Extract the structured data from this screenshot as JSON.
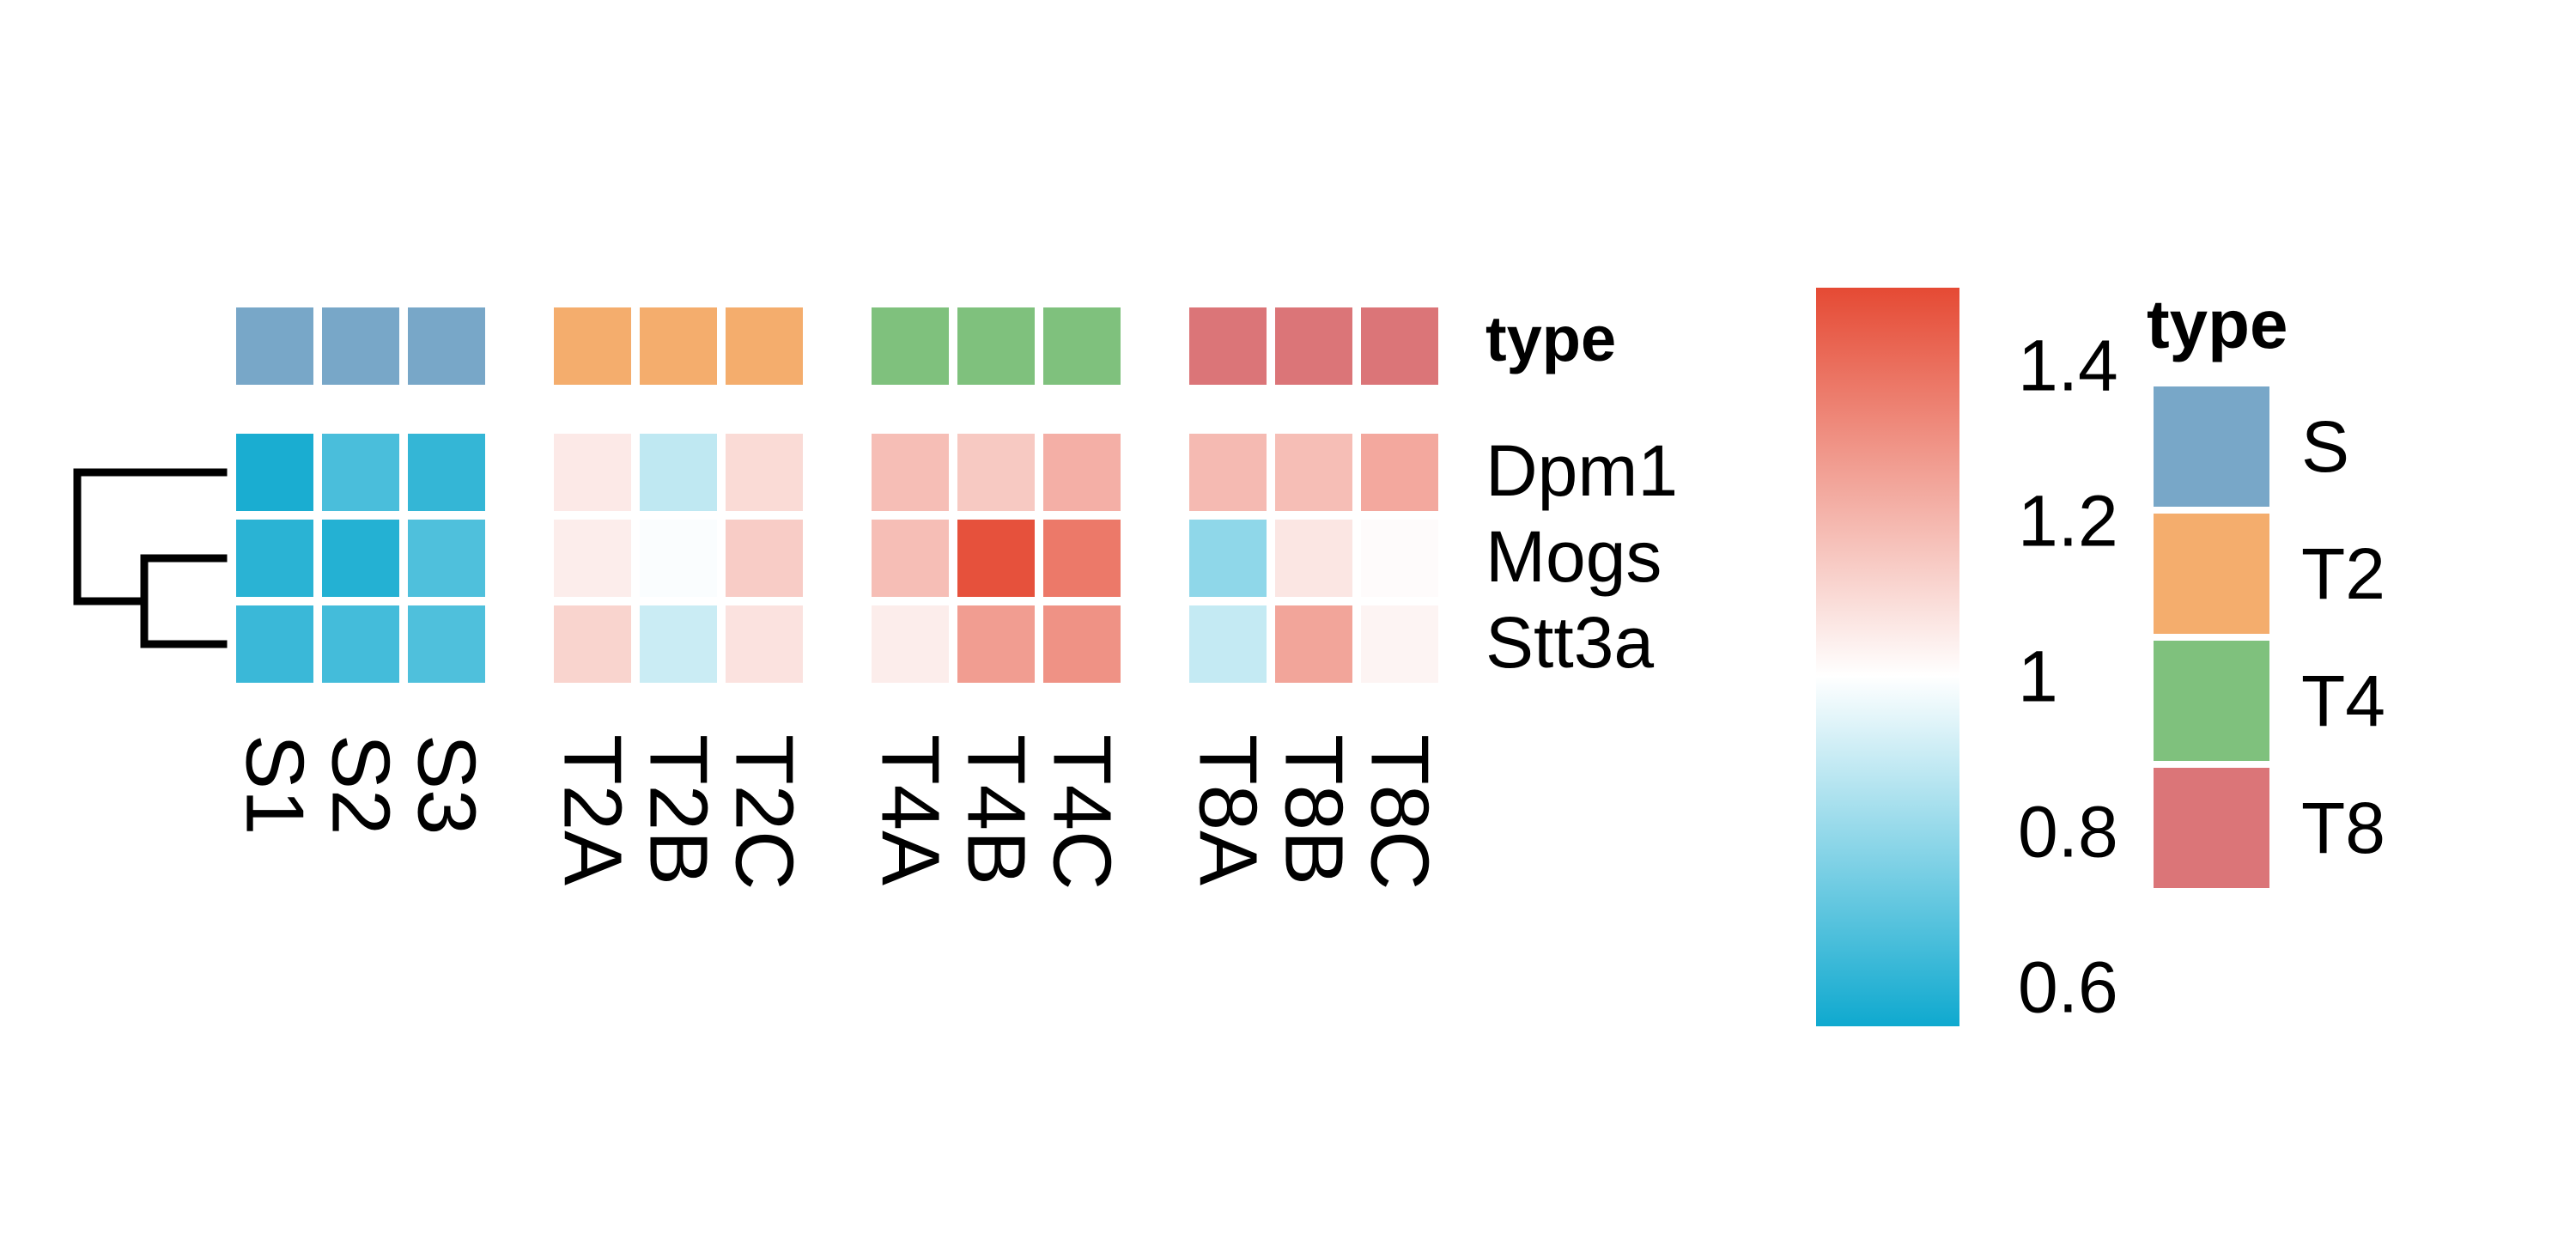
{
  "chart_data": {
    "type": "heatmap",
    "rows": [
      "Dpm1",
      "Mogs",
      "Stt3a"
    ],
    "columns": [
      "S1",
      "S2",
      "S3",
      "T2A",
      "T2B",
      "T2C",
      "T4A",
      "T4B",
      "T4C",
      "T8A",
      "T8B",
      "T8C"
    ],
    "column_groups": [
      "S",
      "T2",
      "T4",
      "T8"
    ],
    "column_type": [
      "S",
      "S",
      "S",
      "T2",
      "T2",
      "T2",
      "T4",
      "T4",
      "T4",
      "T8",
      "T8",
      "T8"
    ],
    "values": [
      [
        0.57,
        0.66,
        0.62,
        1.06,
        0.88,
        1.1,
        1.18,
        1.15,
        1.22,
        1.19,
        1.18,
        1.24
      ],
      [
        0.6,
        0.59,
        0.67,
        1.05,
        0.99,
        1.14,
        1.18,
        1.48,
        1.37,
        0.79,
        1.07,
        1.01
      ],
      [
        0.63,
        0.65,
        0.67,
        1.12,
        0.9,
        1.08,
        1.05,
        1.27,
        1.3,
        0.89,
        1.25,
        1.03
      ]
    ],
    "color_scale": {
      "min": 0.55,
      "mid": 1,
      "max": 1.5,
      "low_color": "#0fa9cf",
      "mid_color": "#ffffff",
      "high_color": "#e54a34",
      "ticks": [
        1.4,
        1.2,
        1,
        0.8,
        0.6
      ],
      "tick_labels": [
        "1.4",
        "1.2",
        "1",
        "0.8",
        "0.6"
      ]
    },
    "annotation": {
      "label": "type",
      "legend_title": "type",
      "colors": {
        "S": "#78a7c8",
        "T2": "#f4ad6d",
        "T4": "#7fc17d",
        "T8": "#db7578"
      }
    },
    "row_dendrogram": true
  }
}
